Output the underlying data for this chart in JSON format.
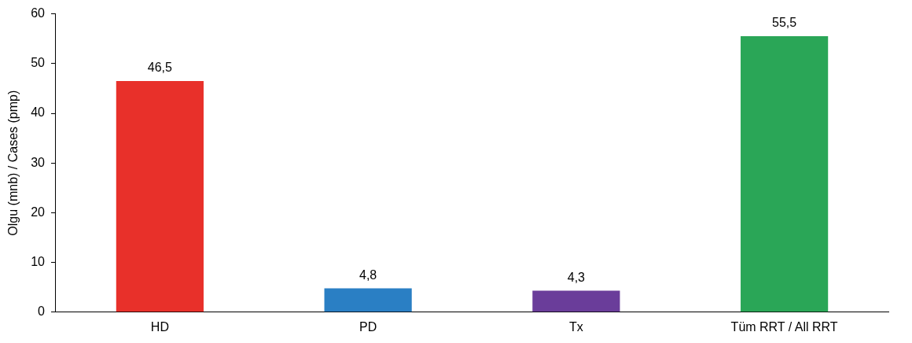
{
  "chart_data": {
    "type": "bar",
    "ylabel": "Olgu (mnb) / Cases (pmp)",
    "categories": [
      "HD",
      "PD",
      "Tx",
      "Tüm RRT / All RRT"
    ],
    "values": [
      46.5,
      4.8,
      4.3,
      55.5
    ],
    "colors": [
      "#e8302a",
      "#2a7fc4",
      "#6a3d9a",
      "#2aa657"
    ],
    "value_labels": [
      "46,5",
      "4,8",
      "4,3",
      "55,5"
    ],
    "ylim": [
      0,
      60
    ],
    "yticks": [
      0,
      10,
      20,
      30,
      40,
      50,
      60
    ],
    "grid": false
  }
}
